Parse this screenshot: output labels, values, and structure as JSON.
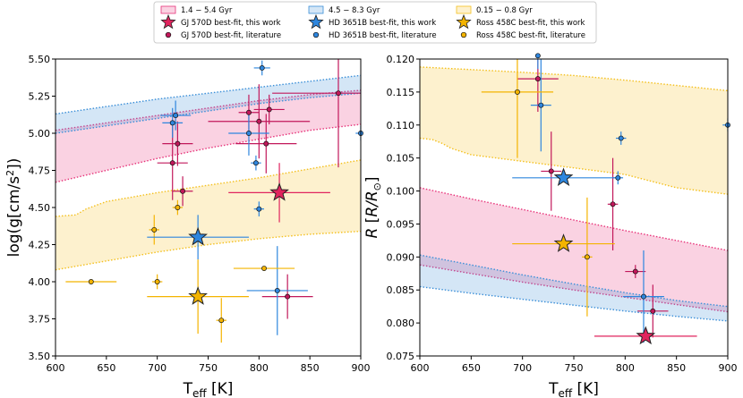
{
  "legend": {
    "entries": [
      {
        "kind": "band",
        "label": "1.4 − 5.4 Gyr",
        "color": "#e7347a"
      },
      {
        "kind": "band",
        "label": "4.5 − 8.3 Gyr",
        "color": "#3b8fd8"
      },
      {
        "kind": "band",
        "label": "0.15 − 0.8 Gyr",
        "color": "#f4c01e"
      },
      {
        "kind": "star",
        "label": "GJ 570D best-fit, this work",
        "color": "#e0245e"
      },
      {
        "kind": "star",
        "label": "HD 3651B best-fit, this work",
        "color": "#2e86de"
      },
      {
        "kind": "star",
        "label": "Ross 458C best-fit, this work",
        "color": "#f4b400"
      },
      {
        "kind": "dot",
        "label": "GJ 570D best-fit, literature",
        "color": "#c2185b"
      },
      {
        "kind": "dot",
        "label": "HD 3651B best-fit, literature",
        "color": "#2e86de"
      },
      {
        "kind": "dot",
        "label": "Ross 458C best-fit, literature",
        "color": "#f4b400"
      }
    ]
  },
  "chart_data": [
    {
      "type": "scatter",
      "xlabel": "T_eff [K]",
      "ylabel": "log(g[cm/s²])",
      "xlim": [
        600,
        900
      ],
      "ylim": [
        3.5,
        5.5
      ],
      "xticks": [
        600,
        650,
        700,
        750,
        800,
        850,
        900
      ],
      "yticks": [
        3.5,
        3.75,
        4.0,
        4.25,
        4.5,
        4.75,
        5.0,
        5.25,
        5.5
      ],
      "xtick_labels": [
        "600",
        "650",
        "700",
        "750",
        "800",
        "850",
        "900"
      ],
      "ytick_labels": [
        "3.50",
        "3.75",
        "4.00",
        "4.25",
        "4.50",
        "4.75",
        "5.00",
        "5.25",
        "5.50"
      ],
      "bands": [
        {
          "name": "1.4 − 5.4 Gyr",
          "color": "#e7347a",
          "lower": [
            [
              600,
              4.67
            ],
            [
              650,
              4.75
            ],
            [
              700,
              4.83
            ],
            [
              750,
              4.9
            ],
            [
              800,
              4.96
            ],
            [
              850,
              5.02
            ],
            [
              900,
              5.06
            ]
          ],
          "upper": [
            [
              600,
              5.02
            ],
            [
              650,
              5.07
            ],
            [
              700,
              5.12
            ],
            [
              750,
              5.17
            ],
            [
              800,
              5.22
            ],
            [
              850,
              5.26
            ],
            [
              900,
              5.29
            ]
          ]
        },
        {
          "name": "4.5 − 8.3 Gyr",
          "color": "#3b8fd8",
          "lower": [
            [
              600,
              5.0
            ],
            [
              650,
              5.05
            ],
            [
              700,
              5.1
            ],
            [
              750,
              5.15
            ],
            [
              800,
              5.2
            ],
            [
              850,
              5.24
            ],
            [
              900,
              5.27
            ]
          ],
          "upper": [
            [
              600,
              5.13
            ],
            [
              650,
              5.18
            ],
            [
              700,
              5.23
            ],
            [
              750,
              5.27
            ],
            [
              800,
              5.31
            ],
            [
              850,
              5.35
            ],
            [
              900,
              5.39
            ]
          ]
        },
        {
          "name": "0.15 − 0.8 Gyr",
          "color": "#f4c01e",
          "lower": [
            [
              600,
              4.08
            ],
            [
              650,
              4.14
            ],
            [
              700,
              4.2
            ],
            [
              750,
              4.25
            ],
            [
              800,
              4.29
            ],
            [
              850,
              4.32
            ],
            [
              900,
              4.34
            ]
          ],
          "upper": [
            [
              600,
              4.44
            ],
            [
              620,
              4.45
            ],
            [
              630,
              4.49
            ],
            [
              650,
              4.54
            ],
            [
              700,
              4.6
            ],
            [
              750,
              4.65
            ],
            [
              800,
              4.7
            ],
            [
              850,
              4.76
            ],
            [
              900,
              4.82
            ]
          ]
        }
      ],
      "series": [
        {
          "name": "GJ 570D best-fit, this work",
          "marker": "star",
          "color": "#e0245e",
          "points": [
            {
              "x": 820,
              "y": 4.6,
              "xerr": 50,
              "yerr": 0.2
            }
          ]
        },
        {
          "name": "HD 3651B best-fit, this work",
          "marker": "star",
          "color": "#2e86de",
          "points": [
            {
              "x": 740,
              "y": 4.3,
              "xerr": 50,
              "yerr": 0.15
            }
          ]
        },
        {
          "name": "Ross 458C best-fit, this work",
          "marker": "star",
          "color": "#f4b400",
          "points": [
            {
              "x": 740,
              "y": 3.9,
              "xerr": 50,
              "yerr": 0.25
            }
          ]
        },
        {
          "name": "GJ 570D best-fit, literature",
          "marker": "dot",
          "color": "#c2185b",
          "points": [
            {
              "x": 715,
              "y": 4.8,
              "xerr": 15,
              "yerr": 0.25
            },
            {
              "x": 720,
              "y": 4.93,
              "xerr": 15,
              "yerr": 0.15
            },
            {
              "x": 725,
              "y": 4.61,
              "xerr": 10,
              "yerr": 0.1
            },
            {
              "x": 790,
              "y": 5.14,
              "xerr": 10,
              "yerr": 0.12
            },
            {
              "x": 800,
              "y": 5.08,
              "xerr": 50,
              "yerr": 0.25
            },
            {
              "x": 807,
              "y": 4.93,
              "xerr": 30,
              "yerr": 0.2
            },
            {
              "x": 810,
              "y": 5.16,
              "xerr": 15,
              "yerr": 0.1
            },
            {
              "x": 828,
              "y": 3.9,
              "xerr": 25,
              "yerr": 0.15
            },
            {
              "x": 878,
              "y": 5.27,
              "xerr": 65,
              "yerr": 0.5
            }
          ]
        },
        {
          "name": "HD 3651B best-fit, literature",
          "marker": "dot",
          "color": "#2e86de",
          "points": [
            {
              "x": 715,
              "y": 5.07,
              "xerr": 10,
              "yerr": 0.1
            },
            {
              "x": 718,
              "y": 5.12,
              "xerr": 15,
              "yerr": 0.1
            },
            {
              "x": 790,
              "y": 5.0,
              "xerr": 20,
              "yerr": 0.15
            },
            {
              "x": 797,
              "y": 4.8,
              "xerr": 5,
              "yerr": 0.05
            },
            {
              "x": 800,
              "y": 4.49,
              "xerr": 5,
              "yerr": 0.05
            },
            {
              "x": 803,
              "y": 5.44,
              "xerr": 8,
              "yerr": 0.05
            },
            {
              "x": 818,
              "y": 3.94,
              "xerr": 30,
              "yerr": 0.3
            },
            {
              "x": 900,
              "y": 5.0,
              "xerr": 5,
              "yerr": 0.05
            }
          ]
        },
        {
          "name": "Ross 458C best-fit, literature",
          "marker": "dot",
          "color": "#f4b400",
          "points": [
            {
              "x": 635,
              "y": 4.0,
              "xerr": 25,
              "yerr": 0
            },
            {
              "x": 697,
              "y": 4.35,
              "xerr": 5,
              "yerr": 0.1
            },
            {
              "x": 700,
              "y": 4.0,
              "xerr": 5,
              "yerr": 0.05
            },
            {
              "x": 720,
              "y": 4.5,
              "xerr": 5,
              "yerr": 0.05
            },
            {
              "x": 763,
              "y": 3.74,
              "xerr": 5,
              "yerr": 0.15
            },
            {
              "x": 805,
              "y": 4.09,
              "xerr": 30,
              "yerr": 0
            }
          ]
        }
      ]
    },
    {
      "type": "scatter",
      "xlabel": "T_eff [K]",
      "ylabel": "R [R/R⊙]",
      "xlim": [
        600,
        900
      ],
      "ylim": [
        0.075,
        0.12
      ],
      "xticks": [
        600,
        650,
        700,
        750,
        800,
        850,
        900
      ],
      "yticks": [
        0.075,
        0.08,
        0.085,
        0.09,
        0.095,
        0.1,
        0.105,
        0.11,
        0.115,
        0.12
      ],
      "xtick_labels": [
        "600",
        "650",
        "700",
        "750",
        "800",
        "850",
        "900"
      ],
      "ytick_labels": [
        "0.075",
        "0.080",
        "0.085",
        "0.090",
        "0.095",
        "0.100",
        "0.105",
        "0.110",
        "0.115",
        "0.120"
      ],
      "bands": [
        {
          "name": "0.15 − 0.8 Gyr",
          "color": "#f4c01e",
          "lower": [
            [
              600,
              0.108
            ],
            [
              612,
              0.1078
            ],
            [
              622,
              0.1072
            ],
            [
              630,
              0.1065
            ],
            [
              650,
              0.1055
            ],
            [
              700,
              0.1045
            ],
            [
              750,
              0.1035
            ],
            [
              800,
              0.1025
            ],
            [
              850,
              0.1005
            ],
            [
              900,
              0.0995
            ]
          ],
          "upper": [
            [
              600,
              0.1188
            ],
            [
              650,
              0.1184
            ],
            [
              700,
              0.118
            ],
            [
              750,
              0.1175
            ],
            [
              800,
              0.1168
            ],
            [
              850,
              0.116
            ],
            [
              900,
              0.1152
            ]
          ]
        },
        {
          "name": "1.4 − 5.4 Gyr",
          "color": "#e7347a",
          "lower": [
            [
              600,
              0.0888
            ],
            [
              650,
              0.0875
            ],
            [
              700,
              0.0862
            ],
            [
              750,
              0.085
            ],
            [
              800,
              0.0839
            ],
            [
              850,
              0.0828
            ],
            [
              900,
              0.0817
            ]
          ],
          "upper": [
            [
              600,
              0.1005
            ],
            [
              650,
              0.0988
            ],
            [
              700,
              0.0972
            ],
            [
              750,
              0.0956
            ],
            [
              800,
              0.094
            ],
            [
              850,
              0.0925
            ],
            [
              900,
              0.091
            ]
          ]
        },
        {
          "name": "4.5 − 8.3 Gyr",
          "color": "#3b8fd8",
          "lower": [
            [
              600,
              0.0855
            ],
            [
              650,
              0.0845
            ],
            [
              700,
              0.0836
            ],
            [
              750,
              0.0827
            ],
            [
              800,
              0.0818
            ],
            [
              850,
              0.081
            ],
            [
              900,
              0.0803
            ]
          ],
          "upper": [
            [
              600,
              0.0903
            ],
            [
              650,
              0.0888
            ],
            [
              700,
              0.0873
            ],
            [
              750,
              0.0859
            ],
            [
              800,
              0.0846
            ],
            [
              850,
              0.0834
            ],
            [
              900,
              0.0825
            ]
          ]
        }
      ],
      "series": [
        {
          "name": "GJ 570D best-fit, this work",
          "marker": "star",
          "color": "#e0245e",
          "points": [
            {
              "x": 820,
              "y": 0.078,
              "xerr": 50,
              "yerr": 0
            }
          ]
        },
        {
          "name": "HD 3651B best-fit, this work",
          "marker": "star",
          "color": "#2e86de",
          "points": [
            {
              "x": 740,
              "y": 0.102,
              "xerr": 50,
              "yerr": 0
            }
          ]
        },
        {
          "name": "Ross 458C best-fit, this work",
          "marker": "star",
          "color": "#f4b400",
          "points": [
            {
              "x": 740,
              "y": 0.092,
              "xerr": 50,
              "yerr": 0
            }
          ]
        },
        {
          "name": "GJ 570D best-fit, literature",
          "marker": "dot",
          "color": "#c2185b",
          "points": [
            {
              "x": 715,
              "y": 0.117,
              "xerr": 20,
              "yerr": 0.005
            },
            {
              "x": 728,
              "y": 0.103,
              "xerr": 10,
              "yerr": 0.006
            },
            {
              "x": 788,
              "y": 0.098,
              "xerr": 5,
              "yerr": 0.007
            },
            {
              "x": 810,
              "y": 0.0878,
              "xerr": 10,
              "yerr": 0.001
            },
            {
              "x": 827,
              "y": 0.0818,
              "xerr": 15,
              "yerr": 0.004
            }
          ]
        },
        {
          "name": "HD 3651B best-fit, literature",
          "marker": "dot",
          "color": "#2e86de",
          "points": [
            {
              "x": 715,
              "y": 0.1205,
              "xerr": 5,
              "yerr": 0.002
            },
            {
              "x": 718,
              "y": 0.113,
              "xerr": 10,
              "yerr": 0.007
            },
            {
              "x": 793,
              "y": 0.102,
              "xerr": 5,
              "yerr": 0.001
            },
            {
              "x": 796,
              "y": 0.108,
              "xerr": 5,
              "yerr": 0.001
            },
            {
              "x": 818,
              "y": 0.084,
              "xerr": 20,
              "yerr": 0.007
            },
            {
              "x": 900,
              "y": 0.11,
              "xerr": 5,
              "yerr": 0.001
            }
          ]
        },
        {
          "name": "Ross 458C best-fit, literature",
          "marker": "dot",
          "color": "#f4b400",
          "points": [
            {
              "x": 695,
              "y": 0.115,
              "xerr": 35,
              "yerr": 0.01
            },
            {
              "x": 763,
              "y": 0.09,
              "xerr": 5,
              "yerr": 0.009
            }
          ]
        }
      ]
    }
  ]
}
